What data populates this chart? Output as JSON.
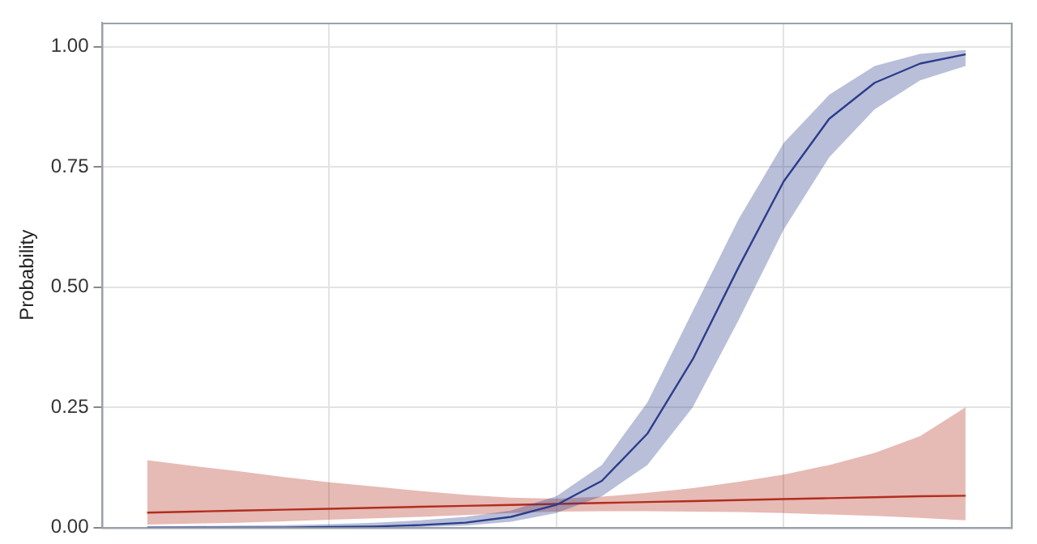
{
  "chart_data": {
    "type": "line",
    "ylabel": "Probability",
    "categories": [
      null,
      null,
      null,
      null,
      null,
      null,
      null,
      null,
      null,
      null,
      null,
      null,
      null,
      null,
      null,
      null,
      null,
      null,
      null,
      null,
      null
    ],
    "ylim": [
      0,
      1.05
    ],
    "yticks": [
      {
        "value": 0,
        "label": "0.00"
      },
      {
        "value": 0.25,
        "label": "0.25"
      },
      {
        "value": 0.5,
        "label": "0.50"
      },
      {
        "value": 0.75,
        "label": "0.75"
      },
      {
        "value": 1,
        "label": "1.00"
      }
    ],
    "series": [
      {
        "color": "#2c3e8c",
        "values": [
          null,
          0,
          0,
          0,
          0,
          0.001,
          0.002,
          0.005,
          0.01,
          0.022,
          0.047,
          0.097,
          0.195,
          0.35,
          0.54,
          0.72,
          0.85,
          0.925,
          0.965,
          0.984,
          null
        ],
        "lower": [
          null,
          0,
          0,
          0,
          0,
          0,
          0,
          0.001,
          0.004,
          0.012,
          0.03,
          0.065,
          0.13,
          0.25,
          0.43,
          0.62,
          0.77,
          0.87,
          0.93,
          0.96,
          null
        ],
        "upper": [
          null,
          0.002,
          0.003,
          0.004,
          0.005,
          0.007,
          0.01,
          0.015,
          0.022,
          0.035,
          0.065,
          0.13,
          0.26,
          0.45,
          0.64,
          0.8,
          0.9,
          0.96,
          0.985,
          0.993,
          null
        ]
      },
      {
        "color": "#b22e1e",
        "values": [
          null,
          0.031,
          0.033,
          0.035,
          0.037,
          0.039,
          0.041,
          0.043,
          0.045,
          0.047,
          0.049,
          0.051,
          0.053,
          0.055,
          0.057,
          0.059,
          0.061,
          0.063,
          0.065,
          0.066,
          null
        ],
        "lower": [
          null,
          0.006,
          0.008,
          0.01,
          0.013,
          0.016,
          0.019,
          0.022,
          0.026,
          0.03,
          0.033,
          0.034,
          0.034,
          0.033,
          0.032,
          0.03,
          0.027,
          0.024,
          0.02,
          0.015,
          null
        ],
        "upper": [
          null,
          0.14,
          0.128,
          0.117,
          0.105,
          0.094,
          0.085,
          0.076,
          0.068,
          0.062,
          0.06,
          0.064,
          0.072,
          0.082,
          0.095,
          0.11,
          0.13,
          0.155,
          0.19,
          0.25,
          null
        ]
      }
    ],
    "grid": true,
    "legend": false,
    "tick_labels": "y",
    "marker": "none",
    "line_style": "solid"
  }
}
